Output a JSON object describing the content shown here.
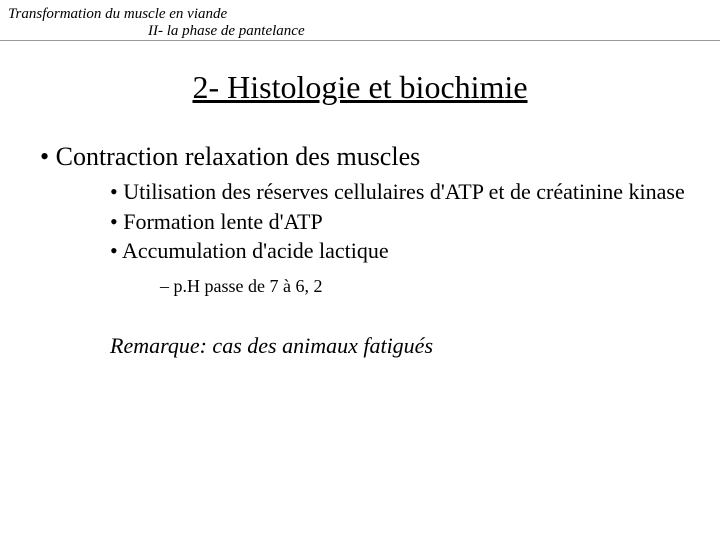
{
  "header": {
    "line1": "Transformation du muscle en viande",
    "line2": "II- la phase de pantelance"
  },
  "title": "2- Histologie et biochimie",
  "bullets": {
    "main": "Contraction relaxation des muscles",
    "sub": [
      "Utilisation des réserves cellulaires d'ATP et de créatinine kinase",
      "Formation lente d'ATP",
      "Accumulation d'acide lactique"
    ],
    "subsub": "p.H passe de 7 à 6, 2"
  },
  "remark": "Remarque: cas des animaux fatigués"
}
